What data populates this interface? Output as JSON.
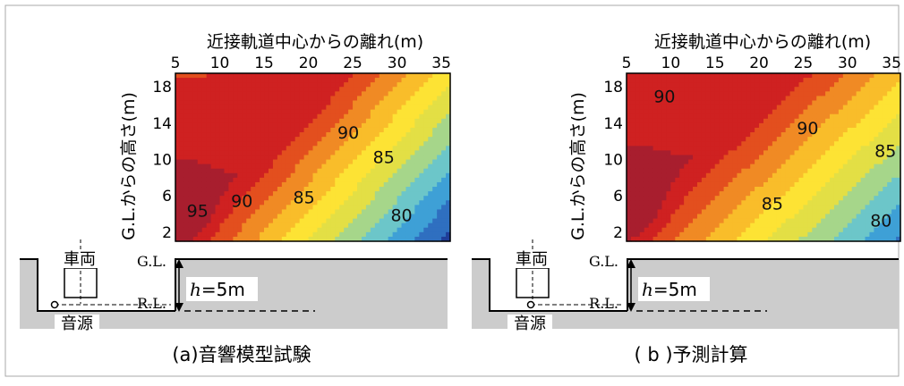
{
  "colors": {
    "ground": "#cccccc",
    "frame": "#999999",
    "ink": "#000000",
    "scale": [
      "#1f3d99",
      "#2f6fc0",
      "#3ea0d6",
      "#6cc6c9",
      "#a6d68a",
      "#e3df45",
      "#fde334",
      "#f9bd2a",
      "#f08a24",
      "#e34f1e",
      "#cf2121",
      "#a81e2e"
    ]
  },
  "panels": [
    {
      "caption": "(a)音響模型試験",
      "xlabel": "近接軌道中心からの離れ(m)",
      "ylabel": "G.L.からの高さ(m)",
      "xticks": [
        "5",
        "10",
        "15",
        "20",
        "25",
        "30",
        "35"
      ],
      "yticks": [
        "2",
        "6",
        "10",
        "14",
        "18"
      ],
      "ground": {
        "gl_label": "G.L.",
        "rl_label": "R.L.",
        "h_italic": "h",
        "h_rest": "=5m",
        "vehicle_label": "車両",
        "source_label": "音源"
      }
    },
    {
      "caption": "( b )予測計算",
      "xlabel": "近接軌道中心からの離れ(m)",
      "ylabel": "G.L.からの高さ(m)",
      "xticks": [
        "5",
        "10",
        "15",
        "20",
        "25",
        "30",
        "35"
      ],
      "yticks": [
        "2",
        "6",
        "10",
        "14",
        "18"
      ],
      "ground": {
        "gl_label": "G.L.",
        "rl_label": "R.L.",
        "h_italic": "h",
        "h_rest": "=5m",
        "vehicle_label": "車両",
        "source_label": "音源"
      }
    }
  ],
  "chart_data": [
    {
      "type": "heatmap",
      "title": "(a)音響模型試験",
      "xlabel": "近接軌道中心からの離れ(m)",
      "ylabel": "G.L.からの高さ(m)",
      "xlim": [
        5,
        36
      ],
      "ylim": [
        1,
        19.5
      ],
      "contour_labels": [
        {
          "text": "95",
          "x": 7.5,
          "y": 3.7
        },
        {
          "text": "90",
          "x": 12.5,
          "y": 4.8
        },
        {
          "text": "90",
          "x": 24.5,
          "y": 12.3
        },
        {
          "text": "85",
          "x": 19.5,
          "y": 5.2
        },
        {
          "text": "85",
          "x": 28.5,
          "y": 9.6
        },
        {
          "text": "80",
          "x": 30.5,
          "y": 3.2
        }
      ],
      "field": {
        "peak": [
          5.5,
          4.5
        ],
        "spread": [
          0.3,
          0.6
        ],
        "rise_per_x": 0.85,
        "intercept": 2.4,
        "perp_decay": 0.45,
        "along_decay": 0.11
      }
    },
    {
      "type": "heatmap",
      "title": "( b )予測計算",
      "xlabel": "近接軌道中心からの離れ(m)",
      "ylabel": "G.L.からの高さ(m)",
      "xlim": [
        5,
        36
      ],
      "ylim": [
        1,
        19.5
      ],
      "contour_labels": [
        {
          "text": "90",
          "x": 9.3,
          "y": 16.3
        },
        {
          "text": "90",
          "x": 25.5,
          "y": 12.8
        },
        {
          "text": "85",
          "x": 34.3,
          "y": 10.3
        },
        {
          "text": "85",
          "x": 21.5,
          "y": 4.5
        },
        {
          "text": "80",
          "x": 33.8,
          "y": 2.6
        }
      ],
      "field": {
        "peak": [
          5.5,
          5.0
        ],
        "spread": [
          0.28,
          0.55
        ],
        "rise_per_x": 0.72,
        "intercept": 4.8,
        "perp_decay": 0.42,
        "along_decay": 0.1
      }
    }
  ]
}
